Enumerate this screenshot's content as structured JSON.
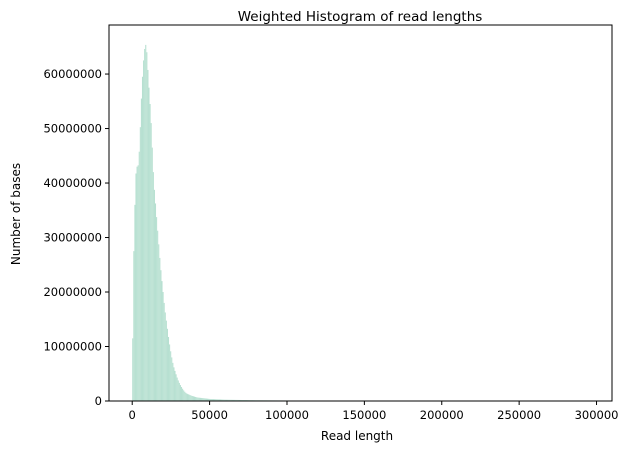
{
  "chart_data": {
    "type": "bar",
    "title": "Weighted Histogram of read lengths",
    "xlabel": "Read length",
    "ylabel": "Number of bases",
    "xlim": [
      -15000,
      310000
    ],
    "ylim": [
      0,
      69000000
    ],
    "xticks": [
      {
        "value": 0,
        "label": "0"
      },
      {
        "value": 50000,
        "label": "50000"
      },
      {
        "value": 100000,
        "label": "100000"
      },
      {
        "value": 150000,
        "label": "150000"
      },
      {
        "value": 200000,
        "label": "200000"
      },
      {
        "value": 250000,
        "label": "250000"
      },
      {
        "value": 300000,
        "label": "300000"
      }
    ],
    "yticks": [
      {
        "value": 0,
        "label": "0"
      },
      {
        "value": 10000000,
        "label": "10000000"
      },
      {
        "value": 20000000,
        "label": "20000000"
      },
      {
        "value": 30000000,
        "label": "30000000"
      },
      {
        "value": 40000000,
        "label": "40000000"
      },
      {
        "value": 50000000,
        "label": "50000000"
      },
      {
        "value": 60000000,
        "label": "60000000"
      }
    ],
    "bar_color": "#b7e0d1",
    "bin_width": 700,
    "profile_points": [
      [
        0,
        0
      ],
      [
        700,
        23000000
      ],
      [
        1400,
        32000000
      ],
      [
        2100,
        40000000
      ],
      [
        2800,
        43500000
      ],
      [
        3500,
        42500000
      ],
      [
        4200,
        44000000
      ],
      [
        4900,
        47500000
      ],
      [
        5600,
        53000000
      ],
      [
        6300,
        58000000
      ],
      [
        7000,
        61000000
      ],
      [
        7700,
        64000000
      ],
      [
        8400,
        65200000
      ],
      [
        9100,
        65500000
      ],
      [
        9800,
        62500000
      ],
      [
        10500,
        59000000
      ],
      [
        11200,
        56000000
      ],
      [
        11900,
        53000000
      ],
      [
        12600,
        49000000
      ],
      [
        13300,
        44000000
      ],
      [
        14000,
        40000000
      ],
      [
        15400,
        35000000
      ],
      [
        16800,
        30000000
      ],
      [
        18200,
        25000000
      ],
      [
        19600,
        21000000
      ],
      [
        21000,
        17000000
      ],
      [
        22400,
        14000000
      ],
      [
        23800,
        11000000
      ],
      [
        25200,
        8500000
      ],
      [
        26600,
        6500000
      ],
      [
        28000,
        5200000
      ],
      [
        29400,
        4000000
      ],
      [
        30800,
        3100000
      ],
      [
        32200,
        2400000
      ],
      [
        33600,
        1800000
      ],
      [
        35000,
        1400000
      ],
      [
        38000,
        1000000
      ],
      [
        42000,
        650000
      ],
      [
        50000,
        380000
      ],
      [
        60000,
        240000
      ],
      [
        80000,
        140000
      ],
      [
        100000,
        95000
      ],
      [
        120000,
        70000
      ],
      [
        140000,
        50000
      ],
      [
        160000,
        30000
      ],
      [
        180000,
        18000
      ],
      [
        200000,
        12000
      ],
      [
        250000,
        6000
      ],
      [
        295000,
        3000
      ]
    ]
  }
}
